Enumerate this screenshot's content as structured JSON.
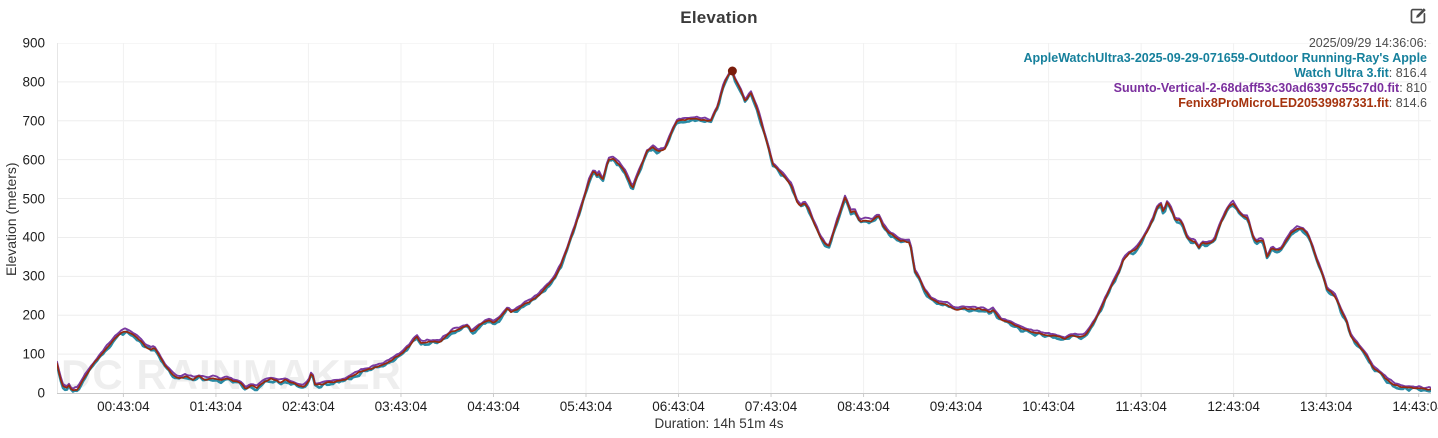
{
  "title": "Elevation",
  "watermark": "DC RAINMAKER",
  "toolbar": {
    "edit_icon": "edit-icon"
  },
  "legend": {
    "timestamp": "2025/09/29 14:36:06:",
    "separator": ": "
  },
  "y_axis": {
    "label": "Elevation (meters)",
    "ticks": [
      0,
      100,
      200,
      300,
      400,
      500,
      600,
      700,
      800,
      900
    ]
  },
  "x_axis": {
    "duration_label": "Duration: 14h 51m 4s",
    "ticks": [
      {
        "label": "00:43:04",
        "t": 0.7178
      },
      {
        "label": "01:43:04",
        "t": 1.7178
      },
      {
        "label": "02:43:04",
        "t": 2.7178
      },
      {
        "label": "03:43:04",
        "t": 3.7178
      },
      {
        "label": "04:43:04",
        "t": 4.7178
      },
      {
        "label": "05:43:04",
        "t": 5.7178
      },
      {
        "label": "06:43:04",
        "t": 6.7178
      },
      {
        "label": "07:43:04",
        "t": 7.7178
      },
      {
        "label": "08:43:04",
        "t": 8.7178
      },
      {
        "label": "09:43:04",
        "t": 9.7178
      },
      {
        "label": "10:43:04",
        "t": 10.7178
      },
      {
        "label": "11:43:04",
        "t": 11.7178
      },
      {
        "label": "12:43:04",
        "t": 12.7178
      },
      {
        "label": "13:43:04",
        "t": 13.7178
      },
      {
        "label": "14:43:04",
        "t": 14.7178
      }
    ]
  },
  "chart_data": {
    "type": "line",
    "title": "Elevation",
    "xlabel": "Duration: 14h 51m 4s",
    "ylabel": "Elevation (meters)",
    "ylim": [
      0,
      900
    ],
    "x_hours_range": [
      0,
      14.8511
    ],
    "grid": true,
    "legend_position": "top-right",
    "cursor": {
      "timestamp": "2025/09/29 14:36:06:",
      "t_hours": 7.3,
      "marker_elevation": 828,
      "marker_color": "#7a1c0c"
    },
    "series": [
      {
        "name": "AppleWatchUltra3-2025-09-29-071659-Outdoor Running-Ray's Apple Watch Ultra 3.fit",
        "value_at_cursor": "816.4",
        "color": "#16809c",
        "line_color": "#2a8ba4"
      },
      {
        "name": "Suunto-Vertical-2-68daff53c30ad6397c55c7d0.fit",
        "value_at_cursor": "810",
        "color": "#7b2f9e",
        "line_color": "#7a3aa0"
      },
      {
        "name": "Fenix8ProMicroLED20539987331.fit",
        "value_at_cursor": "814.6",
        "color": "#a5330e",
        "line_color": "#97290e"
      }
    ],
    "profile_points": [
      [
        0.0,
        76
      ],
      [
        0.03,
        45
      ],
      [
        0.06,
        18
      ],
      [
        0.1,
        12
      ],
      [
        0.13,
        20
      ],
      [
        0.16,
        6
      ],
      [
        0.19,
        10
      ],
      [
        0.22,
        8
      ],
      [
        0.25,
        20
      ],
      [
        0.3,
        42
      ],
      [
        0.36,
        62
      ],
      [
        0.42,
        82
      ],
      [
        0.5,
        105
      ],
      [
        0.58,
        128
      ],
      [
        0.65,
        147
      ],
      [
        0.7,
        156
      ],
      [
        0.74,
        160
      ],
      [
        0.78,
        155
      ],
      [
        0.83,
        148
      ],
      [
        0.9,
        135
      ],
      [
        0.97,
        118
      ],
      [
        1.01,
        112
      ],
      [
        1.05,
        117
      ],
      [
        1.1,
        97
      ],
      [
        1.17,
        70
      ],
      [
        1.24,
        50
      ],
      [
        1.31,
        39
      ],
      [
        1.39,
        43
      ],
      [
        1.47,
        36
      ],
      [
        1.54,
        42
      ],
      [
        1.61,
        34
      ],
      [
        1.69,
        40
      ],
      [
        1.77,
        32
      ],
      [
        1.84,
        38
      ],
      [
        1.91,
        31
      ],
      [
        1.98,
        26
      ],
      [
        2.04,
        11
      ],
      [
        2.09,
        20
      ],
      [
        2.16,
        14
      ],
      [
        2.24,
        30
      ],
      [
        2.32,
        36
      ],
      [
        2.4,
        28
      ],
      [
        2.47,
        33
      ],
      [
        2.54,
        26
      ],
      [
        2.61,
        20
      ],
      [
        2.67,
        16
      ],
      [
        2.72,
        30
      ],
      [
        2.755,
        55
      ],
      [
        2.79,
        20
      ],
      [
        2.85,
        22
      ],
      [
        2.94,
        27
      ],
      [
        3.04,
        30
      ],
      [
        3.13,
        36
      ],
      [
        3.22,
        48
      ],
      [
        3.32,
        58
      ],
      [
        3.42,
        64
      ],
      [
        3.5,
        70
      ],
      [
        3.6,
        82
      ],
      [
        3.7,
        97
      ],
      [
        3.8,
        118
      ],
      [
        3.87,
        140
      ],
      [
        3.89,
        144
      ],
      [
        3.93,
        128
      ],
      [
        4.0,
        131
      ],
      [
        4.08,
        132
      ],
      [
        4.14,
        131
      ],
      [
        4.2,
        145
      ],
      [
        4.26,
        157
      ],
      [
        4.34,
        164
      ],
      [
        4.44,
        174
      ],
      [
        4.48,
        156
      ],
      [
        4.56,
        172
      ],
      [
        4.63,
        184
      ],
      [
        4.68,
        188
      ],
      [
        4.72,
        180
      ],
      [
        4.8,
        196
      ],
      [
        4.87,
        218
      ],
      [
        4.91,
        207
      ],
      [
        4.98,
        216
      ],
      [
        5.04,
        226
      ],
      [
        5.12,
        236
      ],
      [
        5.2,
        250
      ],
      [
        5.28,
        270
      ],
      [
        5.35,
        289
      ],
      [
        5.39,
        302
      ],
      [
        5.45,
        330
      ],
      [
        5.52,
        375
      ],
      [
        5.58,
        415
      ],
      [
        5.64,
        458
      ],
      [
        5.7,
        505
      ],
      [
        5.75,
        545
      ],
      [
        5.79,
        568
      ],
      [
        5.81,
        573
      ],
      [
        5.83,
        556
      ],
      [
        5.85,
        568
      ],
      [
        5.9,
        548
      ],
      [
        5.96,
        599
      ],
      [
        6.0,
        604
      ],
      [
        6.07,
        591
      ],
      [
        6.14,
        568
      ],
      [
        6.22,
        527
      ],
      [
        6.31,
        581
      ],
      [
        6.38,
        622
      ],
      [
        6.44,
        631
      ],
      [
        6.5,
        621
      ],
      [
        6.57,
        628
      ],
      [
        6.65,
        676
      ],
      [
        6.71,
        701
      ],
      [
        6.8,
        703
      ],
      [
        6.92,
        704
      ],
      [
        7.0,
        702
      ],
      [
        7.07,
        700
      ],
      [
        7.14,
        736
      ],
      [
        7.21,
        795
      ],
      [
        7.29,
        830
      ],
      [
        7.33,
        806
      ],
      [
        7.39,
        779
      ],
      [
        7.44,
        750
      ],
      [
        7.5,
        771
      ],
      [
        7.56,
        738
      ],
      [
        7.63,
        681
      ],
      [
        7.7,
        622
      ],
      [
        7.74,
        586
      ],
      [
        7.79,
        574
      ],
      [
        7.84,
        563
      ],
      [
        7.89,
        548
      ],
      [
        7.94,
        533
      ],
      [
        8.0,
        491
      ],
      [
        8.04,
        480
      ],
      [
        8.08,
        488
      ],
      [
        8.12,
        477
      ],
      [
        8.18,
        440
      ],
      [
        8.25,
        401
      ],
      [
        8.3,
        385
      ],
      [
        8.34,
        376
      ],
      [
        8.43,
        440
      ],
      [
        8.52,
        504
      ],
      [
        8.58,
        465
      ],
      [
        8.62,
        468
      ],
      [
        8.68,
        441
      ],
      [
        8.74,
        444
      ],
      [
        8.8,
        443
      ],
      [
        8.88,
        456
      ],
      [
        8.93,
        430
      ],
      [
        8.98,
        415
      ],
      [
        9.05,
        403
      ],
      [
        9.12,
        391
      ],
      [
        9.22,
        389
      ],
      [
        9.27,
        315
      ],
      [
        9.32,
        295
      ],
      [
        9.38,
        263
      ],
      [
        9.45,
        242
      ],
      [
        9.53,
        230
      ],
      [
        9.62,
        227
      ],
      [
        9.72,
        213
      ],
      [
        9.8,
        219
      ],
      [
        9.9,
        216
      ],
      [
        10.0,
        215
      ],
      [
        10.08,
        208
      ],
      [
        10.12,
        214
      ],
      [
        10.2,
        189
      ],
      [
        10.3,
        181
      ],
      [
        10.42,
        167
      ],
      [
        10.52,
        157
      ],
      [
        10.64,
        153
      ],
      [
        10.74,
        148
      ],
      [
        10.85,
        143
      ],
      [
        10.9,
        139
      ],
      [
        10.96,
        149
      ],
      [
        11.04,
        146
      ],
      [
        11.12,
        148
      ],
      [
        11.16,
        163
      ],
      [
        11.22,
        188
      ],
      [
        11.28,
        214
      ],
      [
        11.32,
        235
      ],
      [
        11.38,
        266
      ],
      [
        11.43,
        291
      ],
      [
        11.48,
        314
      ],
      [
        11.53,
        345
      ],
      [
        11.6,
        361
      ],
      [
        11.66,
        369
      ],
      [
        11.72,
        390
      ],
      [
        11.79,
        420
      ],
      [
        11.85,
        448
      ],
      [
        11.88,
        470
      ],
      [
        11.93,
        487
      ],
      [
        11.96,
        463
      ],
      [
        12.0,
        490
      ],
      [
        12.05,
        471
      ],
      [
        12.09,
        442
      ],
      [
        12.13,
        444
      ],
      [
        12.16,
        437
      ],
      [
        12.22,
        398
      ],
      [
        12.27,
        391
      ],
      [
        12.31,
        386
      ],
      [
        12.34,
        373
      ],
      [
        12.38,
        387
      ],
      [
        12.43,
        384
      ],
      [
        12.47,
        386
      ],
      [
        12.51,
        394
      ],
      [
        12.58,
        437
      ],
      [
        12.66,
        478
      ],
      [
        12.71,
        489
      ],
      [
        12.77,
        466
      ],
      [
        12.82,
        453
      ],
      [
        12.87,
        450
      ],
      [
        12.93,
        399
      ],
      [
        12.96,
        387
      ],
      [
        13.0,
        394
      ],
      [
        13.04,
        390
      ],
      [
        13.08,
        348
      ],
      [
        13.13,
        375
      ],
      [
        13.18,
        366
      ],
      [
        13.24,
        370
      ],
      [
        13.29,
        393
      ],
      [
        13.34,
        411
      ],
      [
        13.41,
        424
      ],
      [
        13.46,
        422
      ],
      [
        13.52,
        407
      ],
      [
        13.57,
        376
      ],
      [
        13.62,
        340
      ],
      [
        13.67,
        311
      ],
      [
        13.73,
        266
      ],
      [
        13.78,
        258
      ],
      [
        13.82,
        247
      ],
      [
        13.88,
        212
      ],
      [
        13.94,
        184
      ],
      [
        13.98,
        150
      ],
      [
        14.02,
        136
      ],
      [
        14.09,
        116
      ],
      [
        14.16,
        95
      ],
      [
        14.22,
        67
      ],
      [
        14.26,
        60
      ],
      [
        14.31,
        51
      ],
      [
        14.38,
        33
      ],
      [
        14.45,
        21
      ],
      [
        14.52,
        16
      ],
      [
        14.6,
        13
      ],
      [
        14.7,
        12
      ],
      [
        14.8,
        10
      ],
      [
        14.8511,
        9
      ]
    ]
  }
}
